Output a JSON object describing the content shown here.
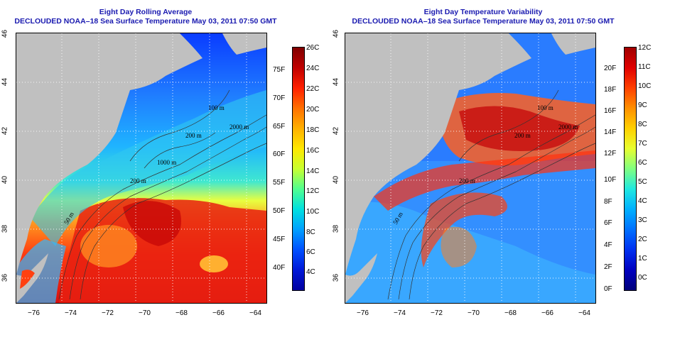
{
  "left_panel": {
    "title": "Eight Day Rolling Average",
    "subtitle": "DECLOUDED NOAA–18 Sea Surface Temperature May 03, 2011 07:50 GMT",
    "lat_ticks": [
      "46",
      "44",
      "42",
      "40",
      "38",
      "36"
    ],
    "lon_ticks": [
      "−76",
      "−74",
      "−72",
      "−70",
      "−68",
      "−66",
      "−64"
    ],
    "colorbar_c": [
      "26C",
      "24C",
      "22C",
      "20C",
      "18C",
      "16C",
      "14C",
      "12C",
      "10C",
      "8C",
      "6C",
      "4C"
    ],
    "colorbar_f": [
      "75F",
      "70F",
      "65F",
      "60F",
      "55F",
      "50F",
      "45F",
      "40F"
    ],
    "contour_labels": [
      "100 m",
      "2000 m",
      "200 m",
      "1000 m",
      "200 m",
      "50 m"
    ]
  },
  "right_panel": {
    "title": "Eight Day Temperature Variability",
    "subtitle": "DECLOUDED NOAA–18 Sea Surface Temperature May 03, 2011 07:50 GMT",
    "lat_ticks": [
      "46",
      "44",
      "42",
      "40",
      "38",
      "36"
    ],
    "lon_ticks": [
      "−76",
      "−74",
      "−72",
      "−70",
      "−68",
      "−66",
      "−64"
    ],
    "colorbar_c": [
      "12C",
      "11C",
      "10C",
      "9C",
      "8C",
      "7C",
      "6C",
      "5C",
      "4C",
      "3C",
      "2C",
      "1C",
      "0C"
    ],
    "colorbar_f": [
      "20F",
      "18F",
      "16F",
      "14F",
      "12F",
      "10F",
      "8F",
      "6F",
      "4F",
      "2F",
      "0F"
    ],
    "contour_labels": [
      "100 m",
      "2000 m",
      "200 m",
      "200 m",
      "50 m"
    ]
  },
  "colors": {
    "land": "#c0c0c0",
    "title": "#1a1ab0",
    "sst_scale": [
      "#00007a",
      "#0000d0",
      "#0050ff",
      "#00a0ff",
      "#00e0e0",
      "#60ff90",
      "#d0ff30",
      "#ffe000",
      "#ffa000",
      "#ff5000",
      "#e00000",
      "#a00000"
    ]
  }
}
